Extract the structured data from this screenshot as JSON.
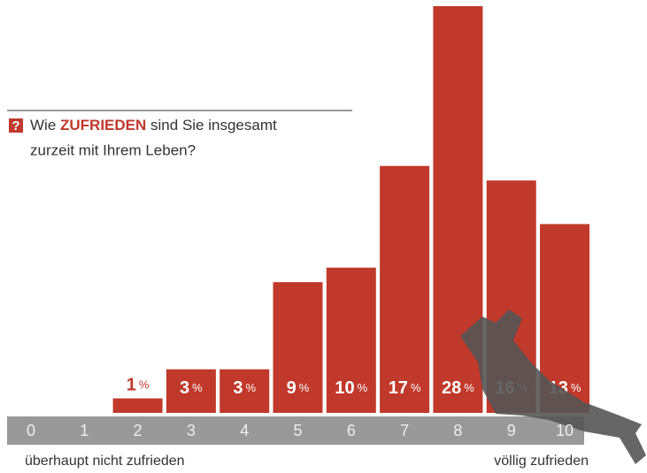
{
  "chart_data": {
    "type": "bar",
    "title": {
      "icon": "?",
      "pre": "Wie",
      "highlight": "ZUFRIEDEN",
      "post": "sind Sie insgesamt",
      "line2": "zurzeit mit Ihrem Leben?"
    },
    "categories": [
      "0",
      "1",
      "2",
      "3",
      "4",
      "5",
      "6",
      "7",
      "8",
      "9",
      "10"
    ],
    "values": [
      0,
      0,
      1,
      3,
      3,
      9,
      10,
      17,
      28,
      16,
      13
    ],
    "value_labels": [
      null,
      null,
      "1%",
      "3%",
      "3%",
      "9%",
      "10%",
      "17%",
      "28%",
      "16%",
      "13%"
    ],
    "color": "#c0392b",
    "axis_low_label": "überhaupt nicht zufrieden",
    "axis_high_label": "völlig zufrieden"
  }
}
